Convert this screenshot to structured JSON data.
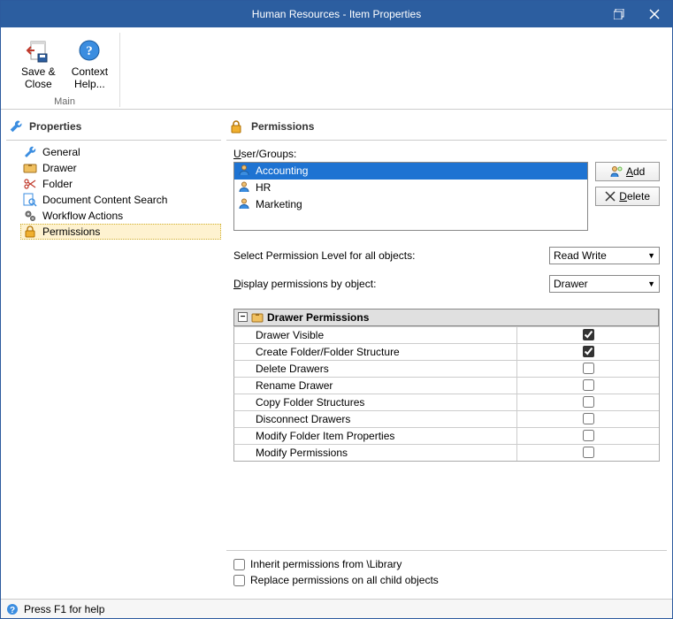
{
  "titlebar": {
    "title": "Human Resources - Item Properties"
  },
  "ribbon": {
    "group_label": "Main",
    "save_close": {
      "line1": "Save &",
      "line2": "Close"
    },
    "context_help": {
      "line1": "Context",
      "line2": "Help..."
    }
  },
  "left": {
    "header": "Properties",
    "items": [
      {
        "label": "General",
        "icon": "wrench-icon"
      },
      {
        "label": "Drawer",
        "icon": "drawer-icon"
      },
      {
        "label": "Folder",
        "icon": "scissors-icon"
      },
      {
        "label": "Document Content Search",
        "icon": "search-icon"
      },
      {
        "label": "Workflow Actions",
        "icon": "gears-icon"
      },
      {
        "label": "Permissions",
        "icon": "lock-icon",
        "selected": true
      }
    ]
  },
  "right": {
    "header": "Permissions",
    "user_groups_label": "User/Groups:",
    "users": [
      {
        "name": "Accounting",
        "selected": true
      },
      {
        "name": "HR"
      },
      {
        "name": "Marketing"
      }
    ],
    "add_button": "Add",
    "delete_button": "Delete",
    "select_level_label": "Select Permission Level for all objects:",
    "select_level_value": "Read Write",
    "display_by_label": "Display permissions by object:",
    "display_by_value": "Drawer",
    "perm_group_title": "Drawer Permissions",
    "perms": [
      {
        "name": "Drawer Visible",
        "checked": true
      },
      {
        "name": "Create Folder/Folder Structure",
        "checked": true
      },
      {
        "name": "Delete Drawers",
        "checked": false
      },
      {
        "name": "Rename Drawer",
        "checked": false
      },
      {
        "name": "Copy Folder Structures",
        "checked": false
      },
      {
        "name": "Disconnect Drawers",
        "checked": false
      },
      {
        "name": "Modify Folder Item Properties",
        "checked": false
      },
      {
        "name": "Modify Permissions",
        "checked": false
      }
    ],
    "inherit_label": "Inherit permissions from  \\Library",
    "replace_label": "Replace permissions on all child objects"
  },
  "statusbar": {
    "text": "Press F1 for help"
  },
  "colors": {
    "title_bg": "#2c5ea0",
    "selection_bg": "#1e73d2",
    "tree_sel_bg": "#fef2d0"
  }
}
